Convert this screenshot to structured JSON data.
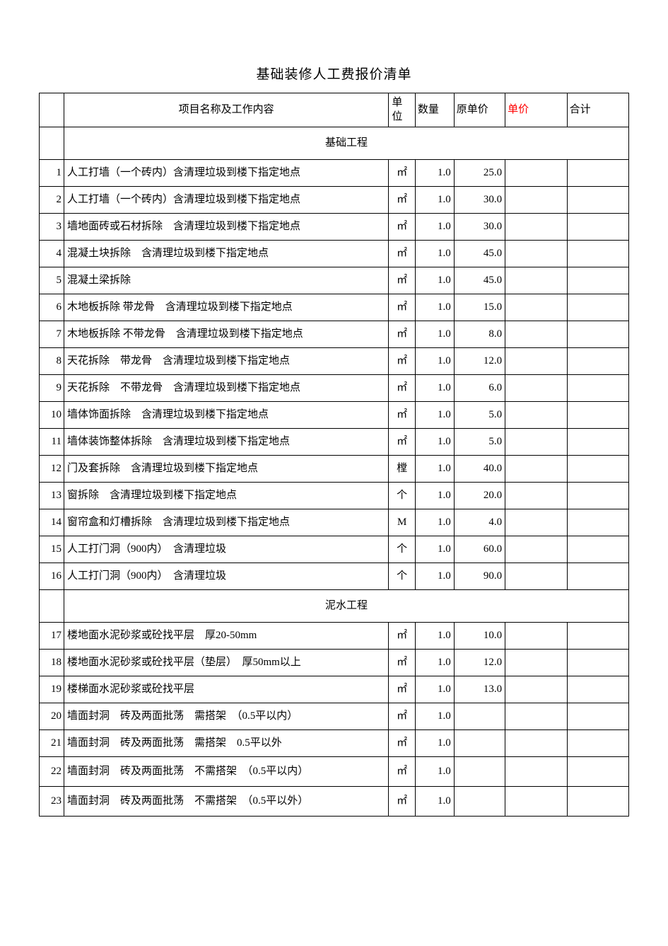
{
  "title": "基础装修人工费报价清单",
  "colors": {
    "text_default": "#000000",
    "text_red": "#ff0000",
    "border": "#000000",
    "background": "#ffffff"
  },
  "header": {
    "idx": "",
    "desc": "项目名称及工作内容",
    "unit": "单位",
    "qty": "数量",
    "original_price": "原单价",
    "price": "单价",
    "total": "合计"
  },
  "sections": [
    {
      "name": "基础工程",
      "rows": [
        {
          "idx": "1",
          "desc": "人工打墙（一个砖内）含清理垃圾到楼下指定地点",
          "unit": "㎡",
          "qty": "1.0",
          "op": "25.0",
          "price": "",
          "total": ""
        },
        {
          "idx": "2",
          "desc": "人工打墙（一个砖内）含清理垃圾到楼下指定地点",
          "unit": "㎡",
          "qty": "1.0",
          "op": "30.0",
          "price": "",
          "total": ""
        },
        {
          "idx": "3",
          "desc": "墙地面砖或石材拆除　含清理垃圾到楼下指定地点",
          "unit": "㎡",
          "qty": "1.0",
          "op": "30.0",
          "price": "",
          "total": ""
        },
        {
          "idx": "4",
          "desc": "混凝土块拆除　含清理垃圾到楼下指定地点",
          "unit": "㎡",
          "qty": "1.0",
          "op": "45.0",
          "price": "",
          "total": ""
        },
        {
          "idx": "5",
          "desc": "混凝土梁拆除",
          "unit": "㎡",
          "qty": "1.0",
          "op": "45.0",
          "price": "",
          "total": ""
        },
        {
          "idx": "6",
          "desc": "木地板拆除 带龙骨　含清理垃圾到楼下指定地点",
          "unit": "㎡",
          "qty": "1.0",
          "op": "15.0",
          "price": "",
          "total": ""
        },
        {
          "idx": "7",
          "desc": "木地板拆除 不带龙骨　含清理垃圾到楼下指定地点",
          "unit": "㎡",
          "qty": "1.0",
          "op": "8.0",
          "price": "",
          "total": ""
        },
        {
          "idx": "8",
          "desc": "天花拆除　带龙骨　含清理垃圾到楼下指定地点",
          "unit": "㎡",
          "qty": "1.0",
          "op": "12.0",
          "price": "",
          "total": ""
        },
        {
          "idx": "9",
          "desc": "天花拆除　不带龙骨　含清理垃圾到楼下指定地点",
          "unit": "㎡",
          "qty": "1.0",
          "op": "6.0",
          "price": "",
          "total": ""
        },
        {
          "idx": "10",
          "desc": "墙体饰面拆除　含清理垃圾到楼下指定地点",
          "unit": "㎡",
          "qty": "1.0",
          "op": "5.0",
          "price": "",
          "total": ""
        },
        {
          "idx": "11",
          "desc": "墙体装饰整体拆除　含清理垃圾到楼下指定地点",
          "unit": "㎡",
          "qty": "1.0",
          "op": "5.0",
          "price": "",
          "total": ""
        },
        {
          "idx": "12",
          "desc": "门及套拆除　含清理垃圾到楼下指定地点",
          "unit": "樘",
          "qty": "1.0",
          "op": "40.0",
          "price": "",
          "total": ""
        },
        {
          "idx": "13",
          "desc": "窗拆除　含清理垃圾到楼下指定地点",
          "unit": "个",
          "qty": "1.0",
          "op": "20.0",
          "price": "",
          "total": ""
        },
        {
          "idx": "14",
          "desc": "窗帘盒和灯槽拆除　含清理垃圾到楼下指定地点",
          "unit": "M",
          "qty": "1.0",
          "op": "4.0",
          "price": "",
          "total": ""
        },
        {
          "idx": "15",
          "desc": "人工打门洞（900内）　含清理垃圾",
          "unit": "个",
          "qty": "1.0",
          "op": "60.0",
          "price": "",
          "total": ""
        },
        {
          "idx": "16",
          "desc": "人工打门洞（900内）　含清理垃圾",
          "unit": "个",
          "qty": "1.0",
          "op": "90.0",
          "price": "",
          "total": ""
        }
      ]
    },
    {
      "name": "泥水工程",
      "rows": [
        {
          "idx": "17",
          "desc": "楼地面水泥砂浆或砼找平层　厚20-50mm",
          "unit": "㎡",
          "qty": "1.0",
          "op": "10.0",
          "price": "",
          "total": ""
        },
        {
          "idx": "18",
          "desc": "楼地面水泥砂浆或砼找平层（垫层）　厚50mm以上",
          "unit": "㎡",
          "qty": "1.0",
          "op": "12.0",
          "price": "",
          "total": ""
        },
        {
          "idx": "19",
          "desc": "楼梯面水泥砂浆或砼找平层",
          "unit": "㎡",
          "qty": "1.0",
          "op": "13.0",
          "price": "",
          "total": ""
        },
        {
          "idx": "20",
          "desc": "墙面封洞　砖及两面批荡　需搭架　（0.5平以内）",
          "unit": "㎡",
          "qty": "1.0",
          "op": "",
          "price": "",
          "total": ""
        },
        {
          "idx": "21",
          "desc": "墙面封洞　砖及两面批荡　需搭架　0.5平以外",
          "unit": "㎡",
          "qty": "1.0",
          "op": "",
          "price": "",
          "total": ""
        },
        {
          "idx": "22",
          "desc": "墙面封洞　砖及两面批荡　不需搭架　（0.5平以内）",
          "unit": "㎡",
          "qty": "1.0",
          "op": "",
          "price": "",
          "total": "",
          "tall": true
        },
        {
          "idx": "23",
          "desc": "墙面封洞　砖及两面批荡　不需搭架　（0.5平以外）",
          "unit": "㎡",
          "qty": "1.0",
          "op": "",
          "price": "",
          "total": "",
          "tall": true
        }
      ]
    }
  ]
}
